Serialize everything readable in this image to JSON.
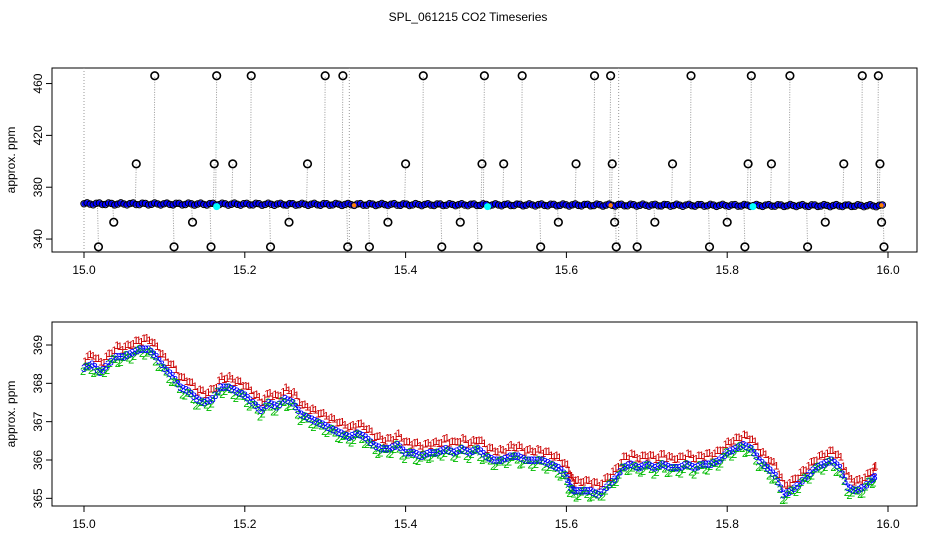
{
  "page": {
    "title": "SPL_061215  CO2 Timeseries"
  },
  "chart_data": [
    {
      "type": "scatter",
      "ylabel": "approx. ppm",
      "xlim": [
        15.0,
        16.0
      ],
      "ylim": [
        330,
        472
      ],
      "x_ticks": [
        "15.0",
        "15.2",
        "15.4",
        "15.6",
        "15.8",
        "16.0"
      ],
      "x_tick_values": [
        15.0,
        15.2,
        15.4,
        15.6,
        15.8,
        16.0
      ],
      "y_ticks": [
        "340",
        "380",
        "420",
        "460"
      ],
      "y_tick_values": [
        340,
        380,
        420,
        460
      ],
      "baseline_ppm": 366,
      "colors": {
        "main": "#0000ff",
        "outline": "#000000",
        "cyan": "#00ffff",
        "orange": "#ff8000",
        "line": "#999999"
      },
      "outliers": [
        {
          "x": 15.018,
          "y": 334
        },
        {
          "x": 15.037,
          "y": 353
        },
        {
          "x": 15.065,
          "y": 398
        },
        {
          "x": 15.088,
          "y": 466
        },
        {
          "x": 15.112,
          "y": 334
        },
        {
          "x": 15.135,
          "y": 353
        },
        {
          "x": 15.158,
          "y": 334
        },
        {
          "x": 15.162,
          "y": 398
        },
        {
          "x": 15.165,
          "y": 466
        },
        {
          "x": 15.185,
          "y": 398
        },
        {
          "x": 15.208,
          "y": 466
        },
        {
          "x": 15.232,
          "y": 334
        },
        {
          "x": 15.255,
          "y": 353
        },
        {
          "x": 15.278,
          "y": 398
        },
        {
          "x": 15.3,
          "y": 466
        },
        {
          "x": 15.322,
          "y": 466
        },
        {
          "x": 15.328,
          "y": 334
        },
        {
          "x": 15.355,
          "y": 334
        },
        {
          "x": 15.378,
          "y": 353
        },
        {
          "x": 15.4,
          "y": 398
        },
        {
          "x": 15.422,
          "y": 466
        },
        {
          "x": 15.445,
          "y": 334
        },
        {
          "x": 15.468,
          "y": 353
        },
        {
          "x": 15.49,
          "y": 334
        },
        {
          "x": 15.495,
          "y": 398
        },
        {
          "x": 15.498,
          "y": 466
        },
        {
          "x": 15.522,
          "y": 398
        },
        {
          "x": 15.545,
          "y": 466
        },
        {
          "x": 15.568,
          "y": 334
        },
        {
          "x": 15.59,
          "y": 353
        },
        {
          "x": 15.612,
          "y": 398
        },
        {
          "x": 15.635,
          "y": 466
        },
        {
          "x": 15.655,
          "y": 466
        },
        {
          "x": 15.657,
          "y": 398
        },
        {
          "x": 15.66,
          "y": 353
        },
        {
          "x": 15.662,
          "y": 334
        },
        {
          "x": 15.688,
          "y": 334
        },
        {
          "x": 15.71,
          "y": 353
        },
        {
          "x": 15.732,
          "y": 398
        },
        {
          "x": 15.755,
          "y": 466
        },
        {
          "x": 15.778,
          "y": 334
        },
        {
          "x": 15.8,
          "y": 353
        },
        {
          "x": 15.822,
          "y": 334
        },
        {
          "x": 15.826,
          "y": 398
        },
        {
          "x": 15.83,
          "y": 466
        },
        {
          "x": 15.855,
          "y": 398
        },
        {
          "x": 15.878,
          "y": 466
        },
        {
          "x": 15.9,
          "y": 334
        },
        {
          "x": 15.922,
          "y": 353
        },
        {
          "x": 15.945,
          "y": 398
        },
        {
          "x": 15.968,
          "y": 466
        },
        {
          "x": 15.988,
          "y": 466
        },
        {
          "x": 15.99,
          "y": 398
        },
        {
          "x": 15.992,
          "y": 353
        },
        {
          "x": 15.995,
          "y": 334
        }
      ],
      "cyan_points": [
        {
          "x": 15.165,
          "y": 365
        },
        {
          "x": 15.502,
          "y": 365
        },
        {
          "x": 15.832,
          "y": 365
        }
      ],
      "dashed_verticals": [
        15.0,
        15.33,
        15.665
      ]
    },
    {
      "type": "line",
      "ylabel": "approx. ppm",
      "xlim": [
        15.0,
        16.0
      ],
      "ylim": [
        364.8,
        369.6
      ],
      "x_ticks": [
        "15.0",
        "15.2",
        "15.4",
        "15.6",
        "15.8",
        "16.0"
      ],
      "x_tick_values": [
        15.0,
        15.2,
        15.4,
        15.6,
        15.8,
        16.0
      ],
      "y_ticks": [
        "365",
        "366",
        "367",
        "368",
        "369"
      ],
      "y_tick_values": [
        365,
        366,
        367,
        368,
        369
      ],
      "colors": {
        "1": "#cc0000",
        "2": "#00bb00",
        "3": "#0000ff"
      },
      "series": [
        {
          "values": [
            {
              "x": 15.0,
              "y": 368.4
            },
            {
              "x": 15.01,
              "y": 368.5
            },
            {
              "x": 15.02,
              "y": 368.3
            },
            {
              "x": 15.03,
              "y": 368.5
            },
            {
              "x": 15.04,
              "y": 368.7
            },
            {
              "x": 15.05,
              "y": 368.7
            },
            {
              "x": 15.06,
              "y": 368.8
            },
            {
              "x": 15.07,
              "y": 368.9
            },
            {
              "x": 15.08,
              "y": 368.9
            },
            {
              "x": 15.09,
              "y": 368.7
            },
            {
              "x": 15.1,
              "y": 368.4
            },
            {
              "x": 15.11,
              "y": 368.2
            },
            {
              "x": 15.12,
              "y": 367.9
            },
            {
              "x": 15.13,
              "y": 367.8
            },
            {
              "x": 15.14,
              "y": 367.6
            },
            {
              "x": 15.15,
              "y": 367.5
            },
            {
              "x": 15.16,
              "y": 367.6
            },
            {
              "x": 15.17,
              "y": 367.9
            },
            {
              "x": 15.18,
              "y": 367.9
            },
            {
              "x": 15.19,
              "y": 367.8
            },
            {
              "x": 15.2,
              "y": 367.7
            },
            {
              "x": 15.21,
              "y": 367.5
            },
            {
              "x": 15.22,
              "y": 367.3
            },
            {
              "x": 15.23,
              "y": 367.5
            },
            {
              "x": 15.24,
              "y": 367.4
            },
            {
              "x": 15.25,
              "y": 367.6
            },
            {
              "x": 15.26,
              "y": 367.5
            },
            {
              "x": 15.27,
              "y": 367.2
            },
            {
              "x": 15.28,
              "y": 367.1
            },
            {
              "x": 15.29,
              "y": 367.0
            },
            {
              "x": 15.3,
              "y": 366.9
            },
            {
              "x": 15.31,
              "y": 366.8
            },
            {
              "x": 15.32,
              "y": 366.7
            },
            {
              "x": 15.33,
              "y": 366.6
            },
            {
              "x": 15.34,
              "y": 366.7
            },
            {
              "x": 15.35,
              "y": 366.6
            },
            {
              "x": 15.36,
              "y": 366.4
            },
            {
              "x": 15.37,
              "y": 366.3
            },
            {
              "x": 15.38,
              "y": 366.3
            },
            {
              "x": 15.39,
              "y": 366.4
            },
            {
              "x": 15.4,
              "y": 366.2
            },
            {
              "x": 15.41,
              "y": 366.2
            },
            {
              "x": 15.42,
              "y": 366.1
            },
            {
              "x": 15.43,
              "y": 366.2
            },
            {
              "x": 15.44,
              "y": 366.2
            },
            {
              "x": 15.45,
              "y": 366.3
            },
            {
              "x": 15.46,
              "y": 366.2
            },
            {
              "x": 15.47,
              "y": 366.3
            },
            {
              "x": 15.48,
              "y": 366.2
            },
            {
              "x": 15.49,
              "y": 366.3
            },
            {
              "x": 15.5,
              "y": 366.1
            },
            {
              "x": 15.51,
              "y": 366.0
            },
            {
              "x": 15.52,
              "y": 366.0
            },
            {
              "x": 15.53,
              "y": 366.1
            },
            {
              "x": 15.54,
              "y": 366.1
            },
            {
              "x": 15.55,
              "y": 366.0
            },
            {
              "x": 15.56,
              "y": 366.0
            },
            {
              "x": 15.57,
              "y": 366.0
            },
            {
              "x": 15.58,
              "y": 365.9
            },
            {
              "x": 15.59,
              "y": 365.8
            },
            {
              "x": 15.6,
              "y": 365.6
            },
            {
              "x": 15.605,
              "y": 365.3
            },
            {
              "x": 15.61,
              "y": 365.2
            },
            {
              "x": 15.62,
              "y": 365.2
            },
            {
              "x": 15.63,
              "y": 365.2
            },
            {
              "x": 15.64,
              "y": 365.1
            },
            {
              "x": 15.65,
              "y": 365.3
            },
            {
              "x": 15.66,
              "y": 365.5
            },
            {
              "x": 15.67,
              "y": 365.8
            },
            {
              "x": 15.68,
              "y": 365.9
            },
            {
              "x": 15.69,
              "y": 365.8
            },
            {
              "x": 15.7,
              "y": 365.9
            },
            {
              "x": 15.71,
              "y": 365.8
            },
            {
              "x": 15.72,
              "y": 365.9
            },
            {
              "x": 15.73,
              "y": 365.8
            },
            {
              "x": 15.74,
              "y": 365.8
            },
            {
              "x": 15.75,
              "y": 365.9
            },
            {
              "x": 15.76,
              "y": 365.8
            },
            {
              "x": 15.77,
              "y": 365.9
            },
            {
              "x": 15.78,
              "y": 365.9
            },
            {
              "x": 15.79,
              "y": 366.0
            },
            {
              "x": 15.8,
              "y": 366.2
            },
            {
              "x": 15.81,
              "y": 366.3
            },
            {
              "x": 15.82,
              "y": 366.4
            },
            {
              "x": 15.83,
              "y": 366.3
            },
            {
              "x": 15.84,
              "y": 366.0
            },
            {
              "x": 15.85,
              "y": 365.8
            },
            {
              "x": 15.86,
              "y": 365.6
            },
            {
              "x": 15.87,
              "y": 365.1
            },
            {
              "x": 15.88,
              "y": 365.2
            },
            {
              "x": 15.89,
              "y": 365.4
            },
            {
              "x": 15.9,
              "y": 365.6
            },
            {
              "x": 15.91,
              "y": 365.8
            },
            {
              "x": 15.92,
              "y": 365.9
            },
            {
              "x": 15.93,
              "y": 366.0
            },
            {
              "x": 15.94,
              "y": 365.8
            },
            {
              "x": 15.95,
              "y": 365.3
            },
            {
              "x": 15.96,
              "y": 365.2
            },
            {
              "x": 15.97,
              "y": 365.3
            },
            {
              "x": 15.98,
              "y": 365.5
            },
            {
              "x": 15.985,
              "y": 365.6
            }
          ]
        }
      ]
    }
  ]
}
